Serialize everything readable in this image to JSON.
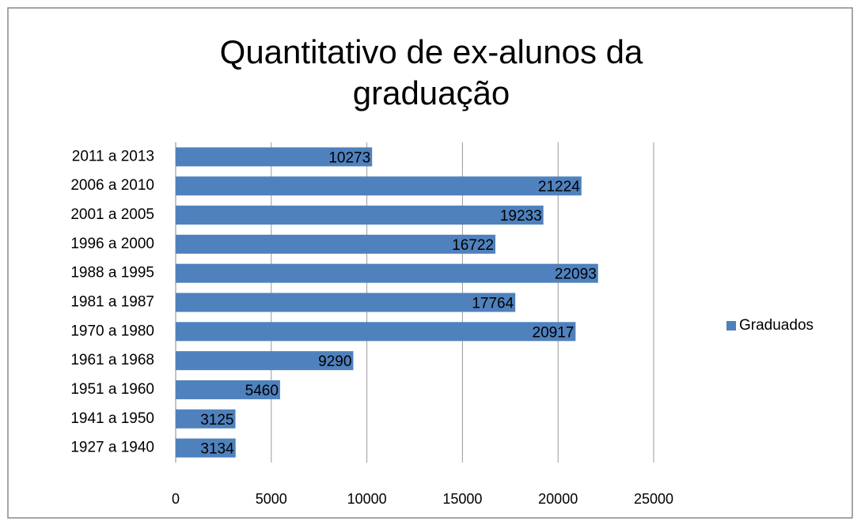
{
  "chart_data": {
    "type": "bar",
    "orientation": "horizontal",
    "title": "Quantitativo de ex-alunos da graduação",
    "categories": [
      "1927 a 1940",
      "1941 a 1950",
      "1951 a 1960",
      "1961 a 1968",
      "1970 a 1980",
      "1981 a 1987",
      "1988 a 1995",
      "1996 a 2000",
      "2001 a 2005",
      "2006 a 2010",
      "2011 a 2013"
    ],
    "series": [
      {
        "name": "Graduados",
        "color": "#4f81bd",
        "values": [
          3134,
          3125,
          5460,
          9290,
          20917,
          17764,
          22093,
          16722,
          19233,
          21224,
          10273
        ]
      }
    ],
    "xlim": [
      0,
      25000
    ],
    "xticks": [
      0,
      5000,
      10000,
      15000,
      20000,
      25000
    ],
    "grid": true,
    "legend": "right",
    "data_labels": true
  }
}
